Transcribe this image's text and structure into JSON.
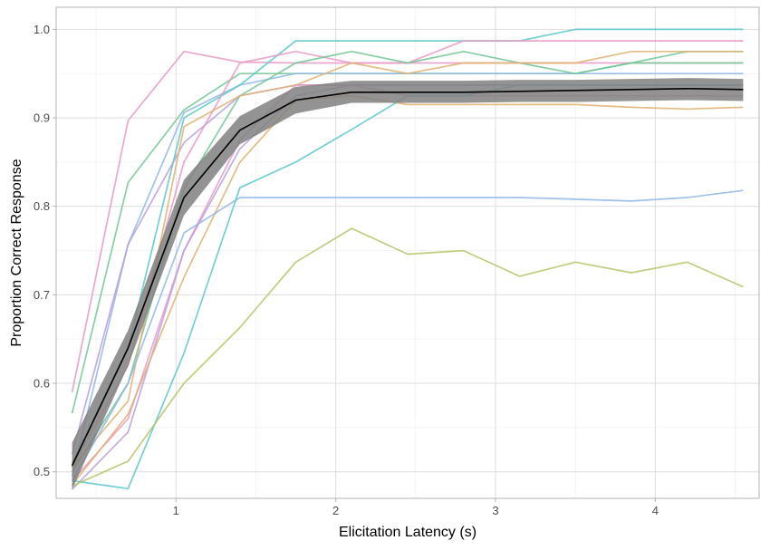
{
  "chart_data": {
    "type": "line",
    "xlabel": "Elicitation Latency (s)",
    "ylabel": "Proportion Correct Response",
    "xlim": [
      0.25,
      4.65
    ],
    "ylim": [
      0.47,
      1.025
    ],
    "x_ticks": [
      "1",
      "2",
      "3",
      "4"
    ],
    "x_tick_values": [
      1,
      2,
      3,
      4
    ],
    "y_ticks": [
      "0.5",
      "0.6",
      "0.7",
      "0.8",
      "0.9",
      "1.0"
    ],
    "y_tick_values": [
      0.5,
      0.6,
      0.7,
      0.8,
      0.9,
      1.0
    ],
    "grid": true,
    "legend": "none",
    "x": [
      0.35,
      0.7,
      1.05,
      1.4,
      1.75,
      2.1,
      2.45,
      2.8,
      3.15,
      3.5,
      3.85,
      4.2,
      4.55
    ],
    "series": [
      {
        "color": "#e899c4",
        "values": [
          0.59,
          0.897,
          0.975,
          0.963,
          0.962,
          0.962,
          0.962,
          0.962,
          0.962,
          0.962,
          0.962,
          0.962,
          0.962
        ]
      },
      {
        "color": "#72c595",
        "values": [
          0.566,
          0.827,
          0.909,
          0.95,
          0.95,
          0.95,
          0.95,
          0.95,
          0.95,
          0.95,
          0.962,
          0.975,
          0.975
        ]
      },
      {
        "color": "#8fb7e5",
        "values": [
          0.495,
          0.757,
          0.906,
          0.937,
          0.95,
          0.95,
          0.95,
          0.95,
          0.95,
          0.95,
          0.95,
          0.95,
          0.95
        ]
      },
      {
        "color": "#b89ee0",
        "values": [
          0.52,
          0.757,
          0.872,
          0.925,
          0.937,
          0.937,
          0.937,
          0.937,
          0.937,
          0.937,
          0.937,
          0.937,
          0.937
        ]
      },
      {
        "color": "#5bc7c9",
        "values": [
          0.51,
          0.64,
          0.9,
          0.937,
          0.987,
          0.987,
          0.987,
          0.987,
          0.987,
          1.0,
          1.0,
          1.0,
          1.0
        ]
      },
      {
        "color": "#e899c4",
        "values": [
          0.505,
          0.62,
          0.85,
          0.962,
          0.975,
          0.962,
          0.962,
          0.987,
          0.987,
          0.987,
          0.987,
          0.987,
          0.987
        ]
      },
      {
        "color": "#72c595",
        "values": [
          0.5,
          0.6,
          0.82,
          0.925,
          0.962,
          0.975,
          0.962,
          0.975,
          0.962,
          0.95,
          0.962,
          0.962,
          0.962
        ]
      },
      {
        "color": "#e0b070",
        "values": [
          0.505,
          0.58,
          0.89,
          0.925,
          0.937,
          0.962,
          0.95,
          0.962,
          0.962,
          0.962,
          0.975,
          0.975,
          0.975
        ]
      },
      {
        "color": "#e899c4",
        "values": [
          0.49,
          0.56,
          0.75,
          0.875,
          0.937,
          0.937,
          0.925,
          0.925,
          0.925,
          0.925,
          0.925,
          0.925,
          0.925
        ]
      },
      {
        "color": "#b89ee0",
        "values": [
          0.48,
          0.545,
          0.75,
          0.865,
          0.925,
          0.937,
          0.937,
          0.937,
          0.937,
          0.937,
          0.937,
          0.937,
          0.937
        ]
      },
      {
        "color": "#e0b070",
        "values": [
          0.485,
          0.565,
          0.72,
          0.85,
          0.92,
          0.925,
          0.915,
          0.915,
          0.915,
          0.915,
          0.912,
          0.91,
          0.912
        ]
      },
      {
        "color": "#8fb7e5",
        "values": [
          0.49,
          0.6,
          0.77,
          0.81,
          0.81,
          0.81,
          0.81,
          0.81,
          0.81,
          0.808,
          0.806,
          0.81,
          0.818
        ]
      },
      {
        "color": "#5bc7c9",
        "values": [
          0.49,
          0.481,
          0.634,
          0.821,
          0.85,
          0.887,
          0.925,
          0.925,
          0.937,
          0.937,
          0.937,
          0.937,
          0.937
        ]
      },
      {
        "color": "#b5c467",
        "values": [
          0.484,
          0.512,
          0.6,
          0.663,
          0.737,
          0.775,
          0.746,
          0.75,
          0.721,
          0.737,
          0.725,
          0.737,
          0.709
        ]
      }
    ],
    "mean": {
      "color": "#000000",
      "ribbon_color": "#808080",
      "values": [
        0.507,
        0.64,
        0.81,
        0.886,
        0.92,
        0.929,
        0.929,
        0.929,
        0.93,
        0.931,
        0.932,
        0.933,
        0.932
      ],
      "lower": [
        0.48,
        0.62,
        0.79,
        0.87,
        0.905,
        0.917,
        0.917,
        0.917,
        0.918,
        0.918,
        0.919,
        0.92,
        0.919
      ],
      "upper": [
        0.533,
        0.66,
        0.83,
        0.902,
        0.935,
        0.942,
        0.942,
        0.942,
        0.943,
        0.943,
        0.944,
        0.945,
        0.944
      ]
    }
  }
}
